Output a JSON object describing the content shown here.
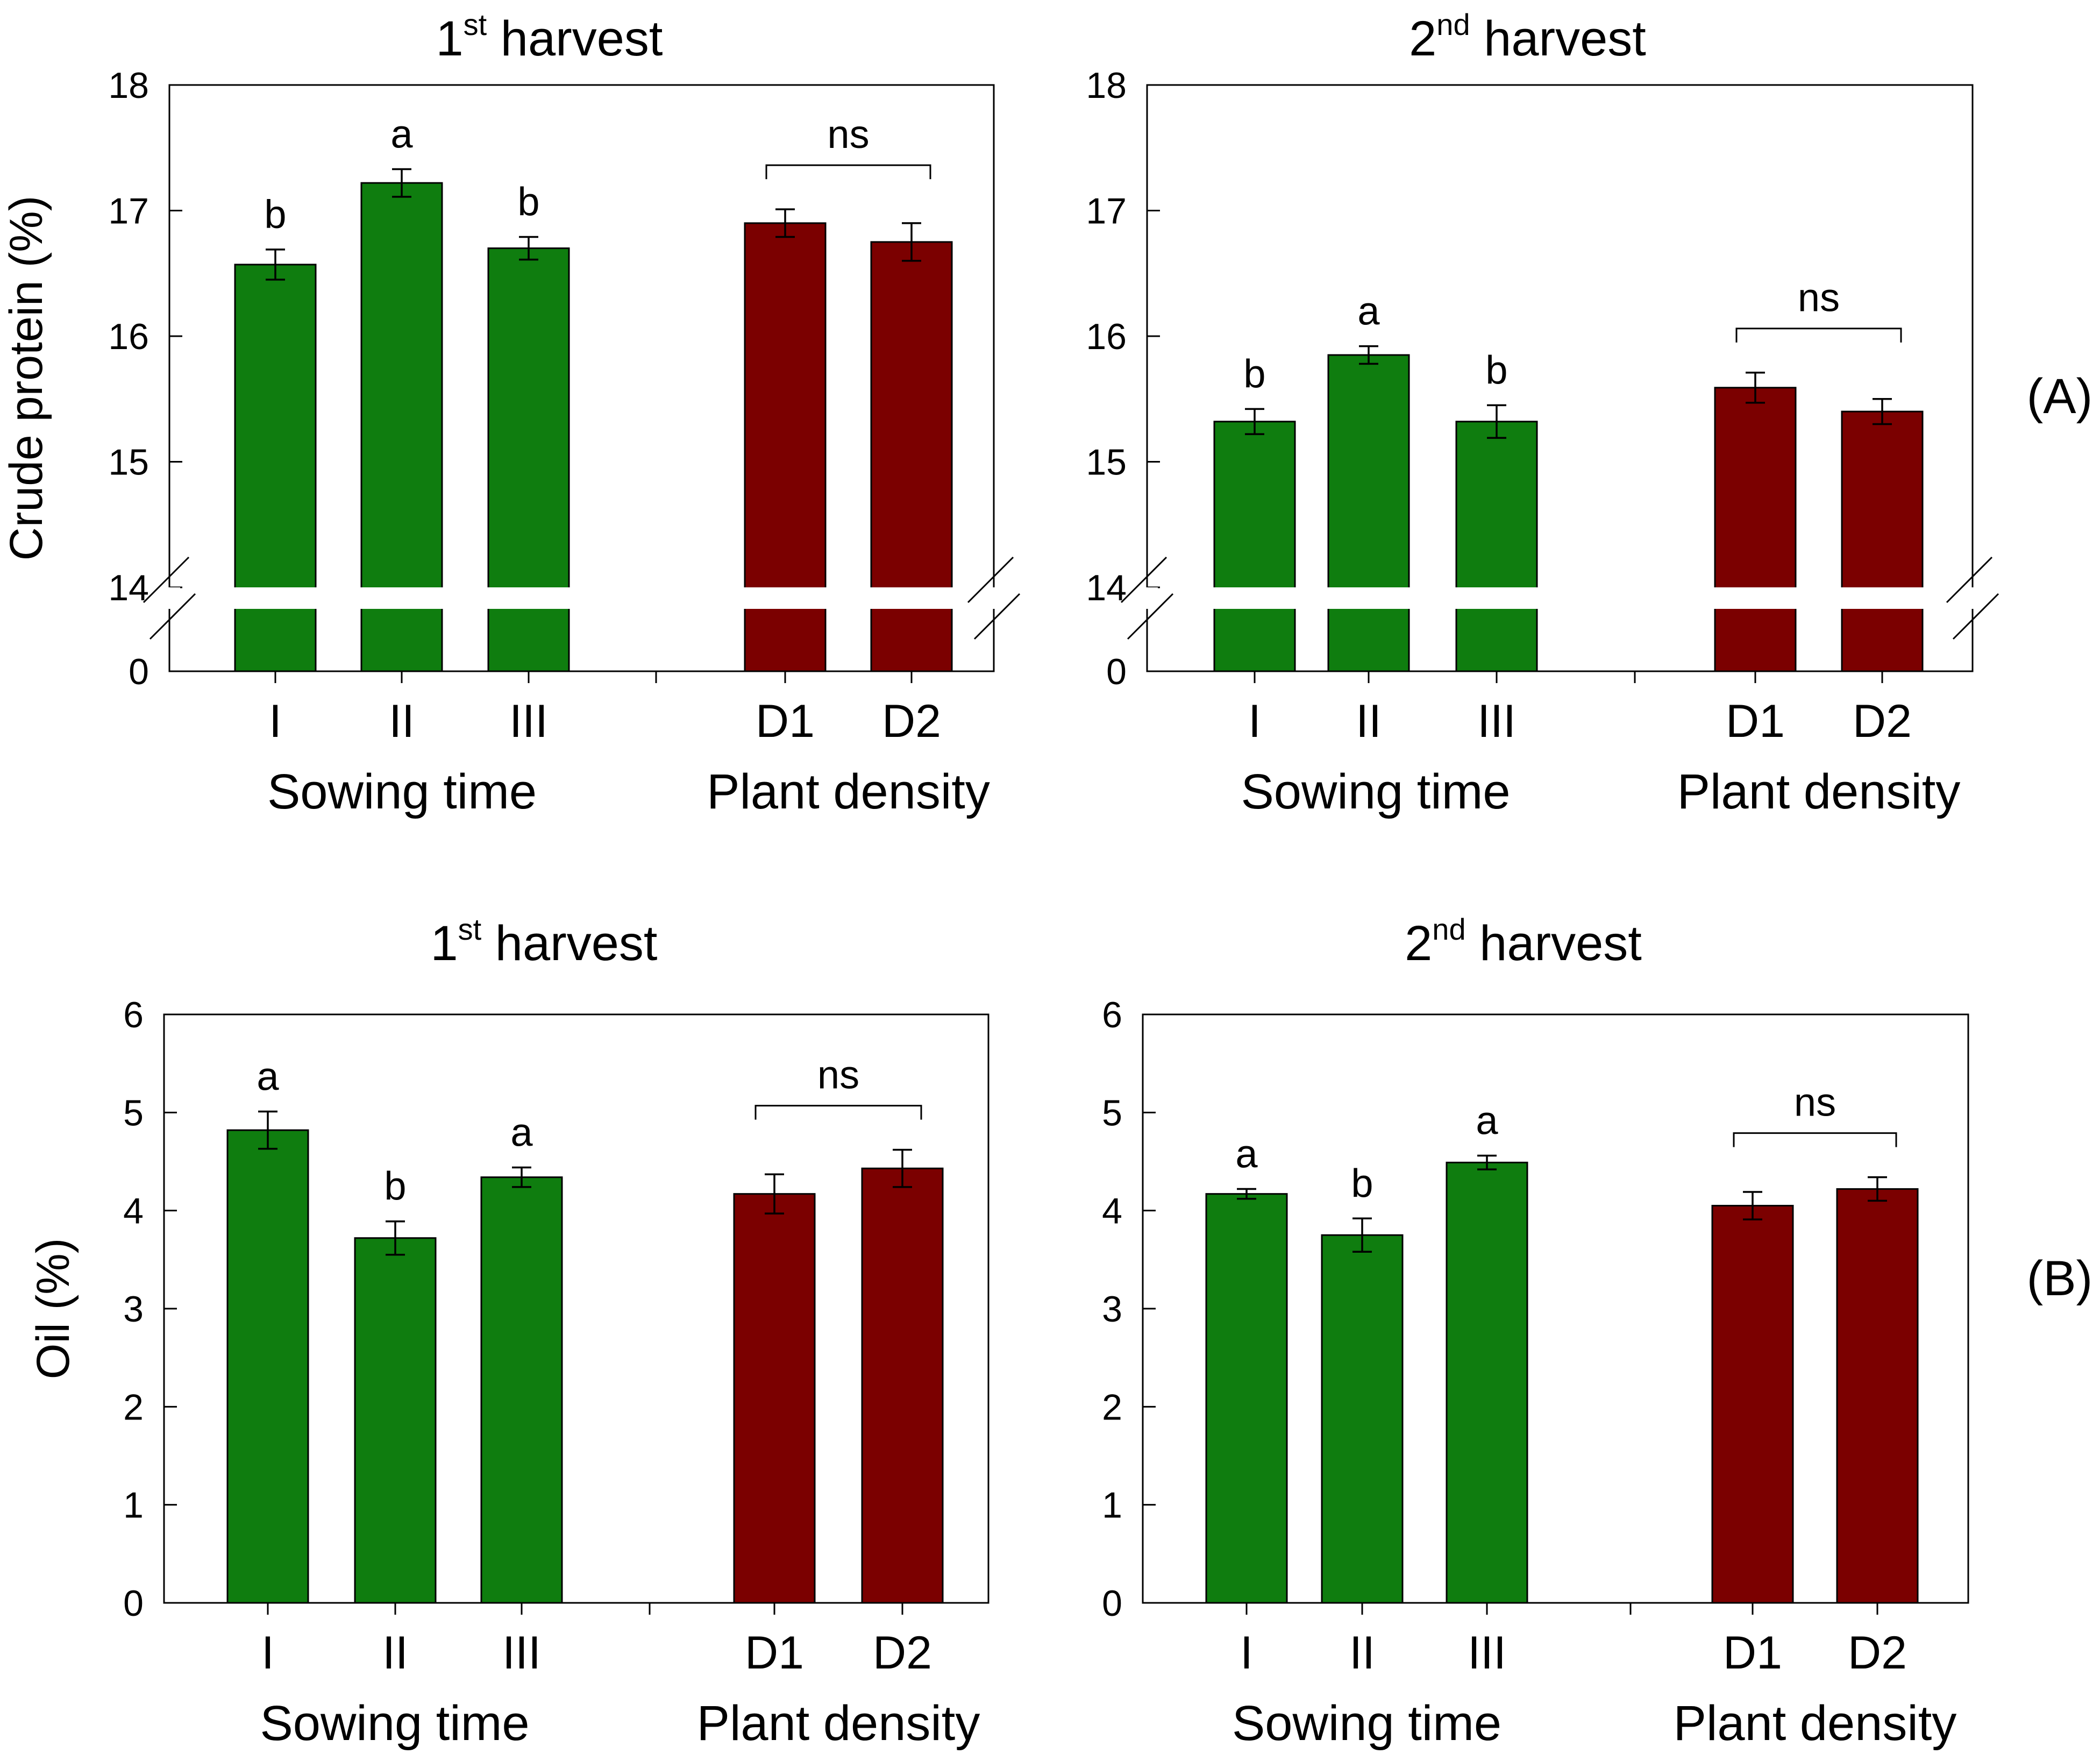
{
  "figure": {
    "row_labels": [
      "(A)",
      "(B)"
    ]
  },
  "chart_data": [
    {
      "type": "bar",
      "title": "1st harvest",
      "title_parts": {
        "number": "1",
        "superscript": "st",
        "rest": " harvest"
      },
      "ylabel": "Crude protein (%)",
      "axis_break": {
        "lower": 0,
        "upper": 14
      },
      "ylim": [
        14,
        18
      ],
      "yticks": [
        "18",
        "17",
        "16",
        "15",
        "14",
        "0"
      ],
      "categories": [
        "I",
        "II",
        "III",
        "D1",
        "D2"
      ],
      "groups": [
        {
          "label": "Sowing time",
          "categories": [
            "I",
            "II",
            "III"
          ],
          "color": "#0f7d0f"
        },
        {
          "label": "Plant density",
          "categories": [
            "D1",
            "D2"
          ],
          "color": "#7b0000"
        }
      ],
      "values": [
        16.57,
        17.22,
        16.7,
        16.9,
        16.75
      ],
      "errors": [
        0.12,
        0.11,
        0.09,
        0.11,
        0.15
      ],
      "significance": [
        "b",
        "a",
        "b",
        "",
        ""
      ],
      "bracket_label": "ns"
    },
    {
      "type": "bar",
      "title": "2nd harvest",
      "title_parts": {
        "number": "2",
        "superscript": "nd",
        "rest": " harvest"
      },
      "ylabel": "",
      "axis_break": {
        "lower": 0,
        "upper": 14
      },
      "ylim": [
        14,
        18
      ],
      "yticks": [
        "18",
        "17",
        "16",
        "15",
        "14",
        "0"
      ],
      "categories": [
        "I",
        "II",
        "III",
        "D1",
        "D2"
      ],
      "groups": [
        {
          "label": "Sowing time",
          "categories": [
            "I",
            "II",
            "III"
          ],
          "color": "#0f7d0f"
        },
        {
          "label": "Plant density",
          "categories": [
            "D1",
            "D2"
          ],
          "color": "#7b0000"
        }
      ],
      "values": [
        15.32,
        15.85,
        15.32,
        15.59,
        15.4
      ],
      "errors": [
        0.1,
        0.07,
        0.13,
        0.12,
        0.1
      ],
      "significance": [
        "b",
        "a",
        "b",
        "",
        ""
      ],
      "bracket_label": "ns"
    },
    {
      "type": "bar",
      "title": "1st harvest",
      "title_parts": {
        "number": "1",
        "superscript": "st",
        "rest": " harvest"
      },
      "ylabel": "Oil (%)",
      "ylim": [
        0,
        6
      ],
      "yticks": [
        "6",
        "5",
        "4",
        "3",
        "2",
        "1",
        "0"
      ],
      "categories": [
        "I",
        "II",
        "III",
        "D1",
        "D2"
      ],
      "groups": [
        {
          "label": "Sowing time",
          "categories": [
            "I",
            "II",
            "III"
          ],
          "color": "#0f7d0f"
        },
        {
          "label": "Plant density",
          "categories": [
            "D1",
            "D2"
          ],
          "color": "#7b0000"
        }
      ],
      "values": [
        4.82,
        3.72,
        4.34,
        4.17,
        4.43
      ],
      "errors": [
        0.19,
        0.17,
        0.1,
        0.2,
        0.19
      ],
      "significance": [
        "a",
        "b",
        "a",
        "",
        ""
      ],
      "bracket_label": "ns"
    },
    {
      "type": "bar",
      "title": "2nd harvest",
      "title_parts": {
        "number": "2",
        "superscript": "nd",
        "rest": " harvest"
      },
      "ylabel": "",
      "ylim": [
        0,
        6
      ],
      "yticks": [
        "6",
        "5",
        "4",
        "3",
        "2",
        "1",
        "0"
      ],
      "categories": [
        "I",
        "II",
        "III",
        "D1",
        "D2"
      ],
      "groups": [
        {
          "label": "Sowing time",
          "categories": [
            "I",
            "II",
            "III"
          ],
          "color": "#0f7d0f"
        },
        {
          "label": "Plant density",
          "categories": [
            "D1",
            "D2"
          ],
          "color": "#7b0000"
        }
      ],
      "values": [
        4.17,
        3.75,
        4.49,
        4.05,
        4.22
      ],
      "errors": [
        0.05,
        0.17,
        0.07,
        0.14,
        0.12
      ],
      "significance": [
        "a",
        "b",
        "a",
        "",
        ""
      ],
      "bracket_label": "ns"
    }
  ]
}
